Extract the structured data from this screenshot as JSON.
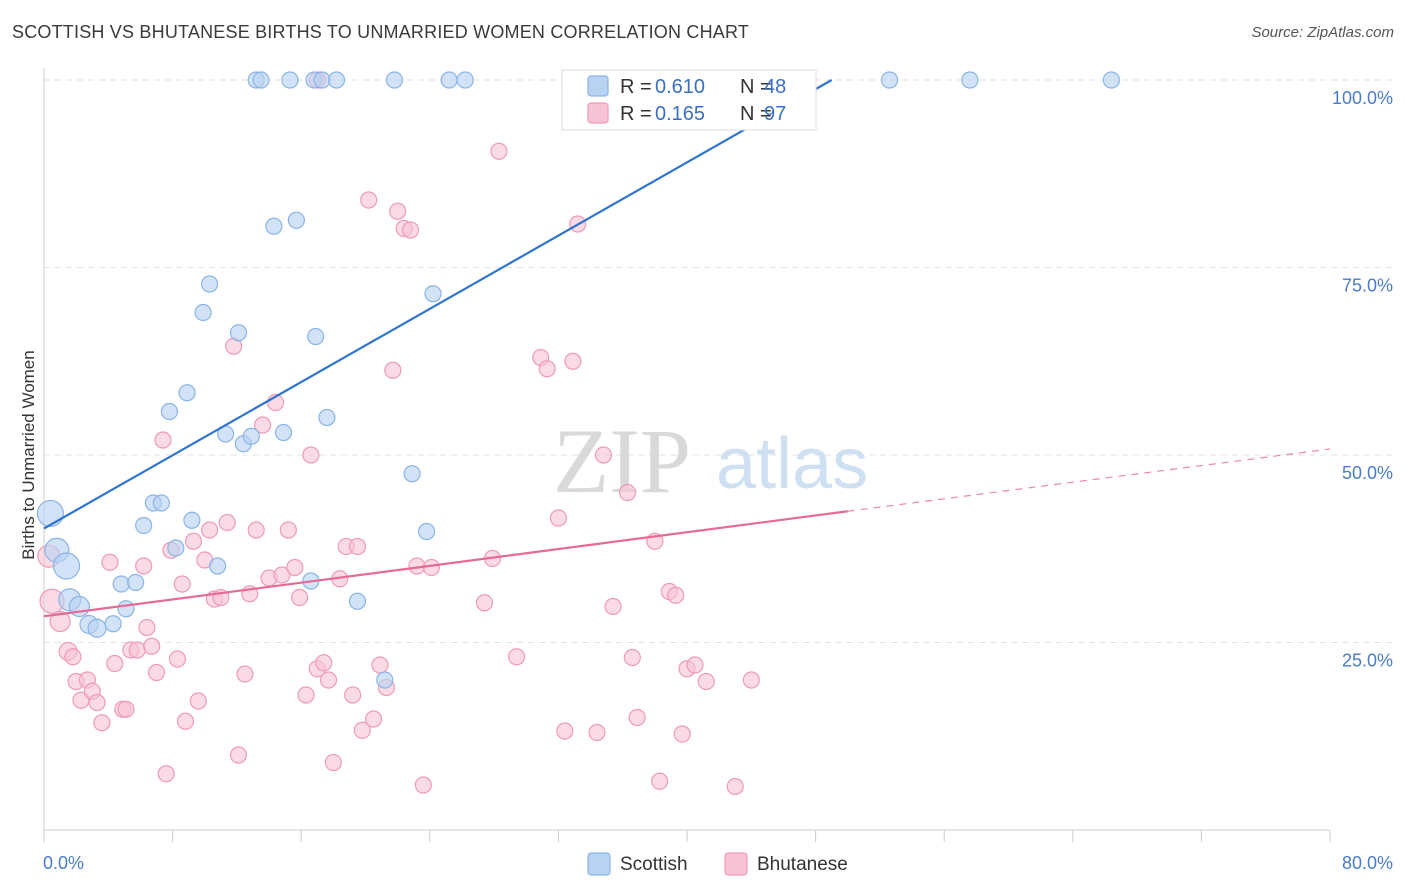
{
  "header": {
    "title": "SCOTTISH VS BHUTANESE BIRTHS TO UNMARRIED WOMEN CORRELATION CHART",
    "source": "Source: ZipAtlas.com"
  },
  "colors": {
    "scottish_fill": "#b8d2f2",
    "scottish_stroke": "#8ab4e6",
    "scottish_line": "#2f74cf",
    "bhutanese_fill": "#f7c4d5",
    "bhutanese_stroke": "#ee9bb8",
    "bhutanese_line": "#e66a95",
    "grid": "#e2e2e2",
    "tick_text": "#4a7cc9"
  },
  "watermark": {
    "zip": "ZIP",
    "atlas": "atlas"
  },
  "chart_data": {
    "type": "scatter",
    "title": "SCOTTISH VS BHUTANESE BIRTHS TO UNMARRIED WOMEN CORRELATION CHART",
    "xlabel": "",
    "ylabel": "Births to Unmarried Women",
    "xlim": [
      0,
      80
    ],
    "ylim": [
      0,
      102
    ],
    "x_tick_labels": [
      "0.0%",
      "80.0%"
    ],
    "y_ticks": [
      25,
      50,
      75,
      100
    ],
    "y_tick_labels": [
      "25.0%",
      "50.0%",
      "75.0%",
      "100.0%"
    ],
    "grid": true,
    "legend": {
      "placement": "top-center",
      "entries": [
        {
          "series": "Scottish",
          "r_label": "R =",
          "r_value": "0.610",
          "n_label": "N =",
          "n_value": "48"
        },
        {
          "series": "Bhutanese",
          "r_label": "R =",
          "r_value": "0.165",
          "n_label": "N =",
          "n_value": "97"
        }
      ]
    },
    "bottom_legend": [
      "Scottish",
      "Bhutanese"
    ],
    "series": [
      {
        "name": "Scottish",
        "trend": {
          "x0": 0,
          "y0": 40.2,
          "x1": 49,
          "y1": 100,
          "dashed_to": null
        },
        "points": [
          [
            0.4,
            42.2,
            13
          ],
          [
            0.8,
            37.3,
            12
          ],
          [
            1.4,
            35.2,
            13
          ],
          [
            1.6,
            30.7,
            11
          ],
          [
            2.2,
            29.8,
            10
          ],
          [
            2.8,
            27.4,
            9
          ],
          [
            3.3,
            26.9,
            9
          ],
          [
            4.3,
            27.5,
            8
          ],
          [
            5.1,
            29.5,
            8
          ],
          [
            4.8,
            32.8,
            8
          ],
          [
            5.7,
            33.0,
            8
          ],
          [
            6.2,
            40.6,
            8
          ],
          [
            6.8,
            43.6,
            8
          ],
          [
            7.3,
            43.6,
            8
          ],
          [
            8.2,
            37.6,
            8
          ],
          [
            9.2,
            41.3,
            8
          ],
          [
            10.8,
            35.2,
            8
          ],
          [
            7.8,
            55.8,
            8
          ],
          [
            8.9,
            58.3,
            8
          ],
          [
            9.9,
            69.0,
            8
          ],
          [
            10.3,
            72.8,
            8
          ],
          [
            11.3,
            52.8,
            8
          ],
          [
            12.1,
            66.3,
            8
          ],
          [
            12.4,
            51.5,
            8
          ],
          [
            12.9,
            52.5,
            8
          ],
          [
            14.3,
            80.5,
            8
          ],
          [
            14.9,
            53.0,
            8
          ],
          [
            15.7,
            81.3,
            8
          ],
          [
            16.6,
            33.2,
            8
          ],
          [
            16.9,
            65.8,
            8
          ],
          [
            17.6,
            55.0,
            8
          ],
          [
            19.5,
            30.5,
            8
          ],
          [
            21.2,
            20.0,
            8
          ],
          [
            22.9,
            47.5,
            8
          ],
          [
            23.8,
            39.8,
            8
          ],
          [
            24.2,
            71.5,
            8
          ],
          [
            13.2,
            100,
            8
          ],
          [
            13.5,
            100,
            8
          ],
          [
            15.3,
            100,
            8
          ],
          [
            16.8,
            100,
            8
          ],
          [
            17.3,
            100,
            8
          ],
          [
            18.2,
            100,
            8
          ],
          [
            21.8,
            100,
            8
          ],
          [
            25.2,
            100,
            8
          ],
          [
            26.2,
            100,
            8
          ],
          [
            52.6,
            100,
            8
          ],
          [
            57.6,
            100,
            8
          ],
          [
            66.4,
            100,
            8
          ]
        ]
      },
      {
        "name": "Bhutanese",
        "trend": {
          "x0": 0,
          "y0": 28.5,
          "x1": 50,
          "y1": 42.5,
          "dashed_to": {
            "x": 80,
            "y": 50.8
          }
        },
        "points": [
          [
            0.3,
            36.5,
            11
          ],
          [
            0.5,
            30.5,
            12
          ],
          [
            1.0,
            27.8,
            10
          ],
          [
            1.5,
            23.8,
            9
          ],
          [
            1.8,
            23.1,
            8
          ],
          [
            2.0,
            19.8,
            8
          ],
          [
            2.3,
            17.3,
            8
          ],
          [
            2.7,
            20.0,
            8
          ],
          [
            3.0,
            18.5,
            8
          ],
          [
            3.3,
            17.0,
            8
          ],
          [
            3.6,
            14.3,
            8
          ],
          [
            4.1,
            35.7,
            8
          ],
          [
            4.4,
            22.2,
            8
          ],
          [
            4.9,
            16.1,
            8
          ],
          [
            5.1,
            16.1,
            8
          ],
          [
            5.4,
            24.0,
            8
          ],
          [
            5.8,
            24.0,
            8
          ],
          [
            6.2,
            35.2,
            8
          ],
          [
            6.4,
            27.0,
            8
          ],
          [
            6.7,
            24.5,
            8
          ],
          [
            7.0,
            21.0,
            8
          ],
          [
            7.4,
            52.0,
            8
          ],
          [
            7.6,
            7.5,
            8
          ],
          [
            7.9,
            37.3,
            8
          ],
          [
            8.3,
            22.8,
            8
          ],
          [
            8.6,
            32.8,
            8
          ],
          [
            8.8,
            14.5,
            8
          ],
          [
            9.3,
            38.5,
            8
          ],
          [
            9.6,
            17.2,
            8
          ],
          [
            10.0,
            36.0,
            8
          ],
          [
            10.3,
            40.0,
            8
          ],
          [
            10.6,
            30.8,
            8
          ],
          [
            11.0,
            31.0,
            8
          ],
          [
            11.4,
            41.0,
            8
          ],
          [
            11.8,
            64.5,
            8
          ],
          [
            12.1,
            10.0,
            8
          ],
          [
            12.5,
            20.8,
            8
          ],
          [
            12.8,
            31.5,
            8
          ],
          [
            13.2,
            40.0,
            8
          ],
          [
            13.6,
            54.0,
            8
          ],
          [
            14.0,
            33.6,
            8
          ],
          [
            14.4,
            57.0,
            8
          ],
          [
            14.8,
            34.0,
            8
          ],
          [
            15.2,
            40.0,
            8
          ],
          [
            15.6,
            35.0,
            8
          ],
          [
            15.9,
            31.0,
            8
          ],
          [
            16.3,
            18.0,
            8
          ],
          [
            16.6,
            50.0,
            8
          ],
          [
            17.0,
            21.5,
            8
          ],
          [
            17.4,
            22.3,
            8
          ],
          [
            17.7,
            20.0,
            8
          ],
          [
            18.0,
            9.0,
            8
          ],
          [
            18.4,
            33.5,
            8
          ],
          [
            18.8,
            37.8,
            8
          ],
          [
            19.2,
            18.0,
            8
          ],
          [
            19.5,
            37.8,
            8
          ],
          [
            19.8,
            13.3,
            8
          ],
          [
            20.2,
            84.0,
            8
          ],
          [
            20.5,
            14.8,
            8
          ],
          [
            20.9,
            22.0,
            8
          ],
          [
            21.3,
            19.0,
            8
          ],
          [
            21.7,
            61.3,
            8
          ],
          [
            22.0,
            82.5,
            8
          ],
          [
            22.4,
            80.2,
            8
          ],
          [
            22.8,
            80.0,
            8
          ],
          [
            23.2,
            35.2,
            8
          ],
          [
            23.6,
            6.0,
            8
          ],
          [
            24.1,
            35.0,
            8
          ],
          [
            27.4,
            30.3,
            8
          ],
          [
            27.9,
            36.2,
            8
          ],
          [
            28.3,
            90.5,
            8
          ],
          [
            29.4,
            23.1,
            8
          ],
          [
            30.9,
            63.0,
            8
          ],
          [
            31.3,
            61.5,
            8
          ],
          [
            32.0,
            41.6,
            8
          ],
          [
            32.4,
            13.2,
            8
          ],
          [
            32.9,
            62.5,
            8
          ],
          [
            33.2,
            80.8,
            8
          ],
          [
            34.4,
            13.0,
            8
          ],
          [
            34.8,
            50.0,
            8
          ],
          [
            35.4,
            29.8,
            8
          ],
          [
            36.3,
            45.0,
            8
          ],
          [
            36.6,
            23.0,
            8
          ],
          [
            36.9,
            15.0,
            8
          ],
          [
            38.0,
            38.5,
            8
          ],
          [
            38.3,
            6.5,
            8
          ],
          [
            38.9,
            31.8,
            8
          ],
          [
            39.3,
            31.3,
            8
          ],
          [
            39.7,
            12.8,
            8
          ],
          [
            40.0,
            21.5,
            8
          ],
          [
            40.5,
            22.0,
            8
          ],
          [
            41.2,
            19.8,
            8
          ],
          [
            43.0,
            5.8,
            8
          ],
          [
            44.0,
            20.0,
            8
          ],
          [
            17.0,
            100,
            8
          ],
          [
            45.4,
            100,
            8
          ],
          [
            45.8,
            100,
            8
          ]
        ]
      }
    ]
  }
}
